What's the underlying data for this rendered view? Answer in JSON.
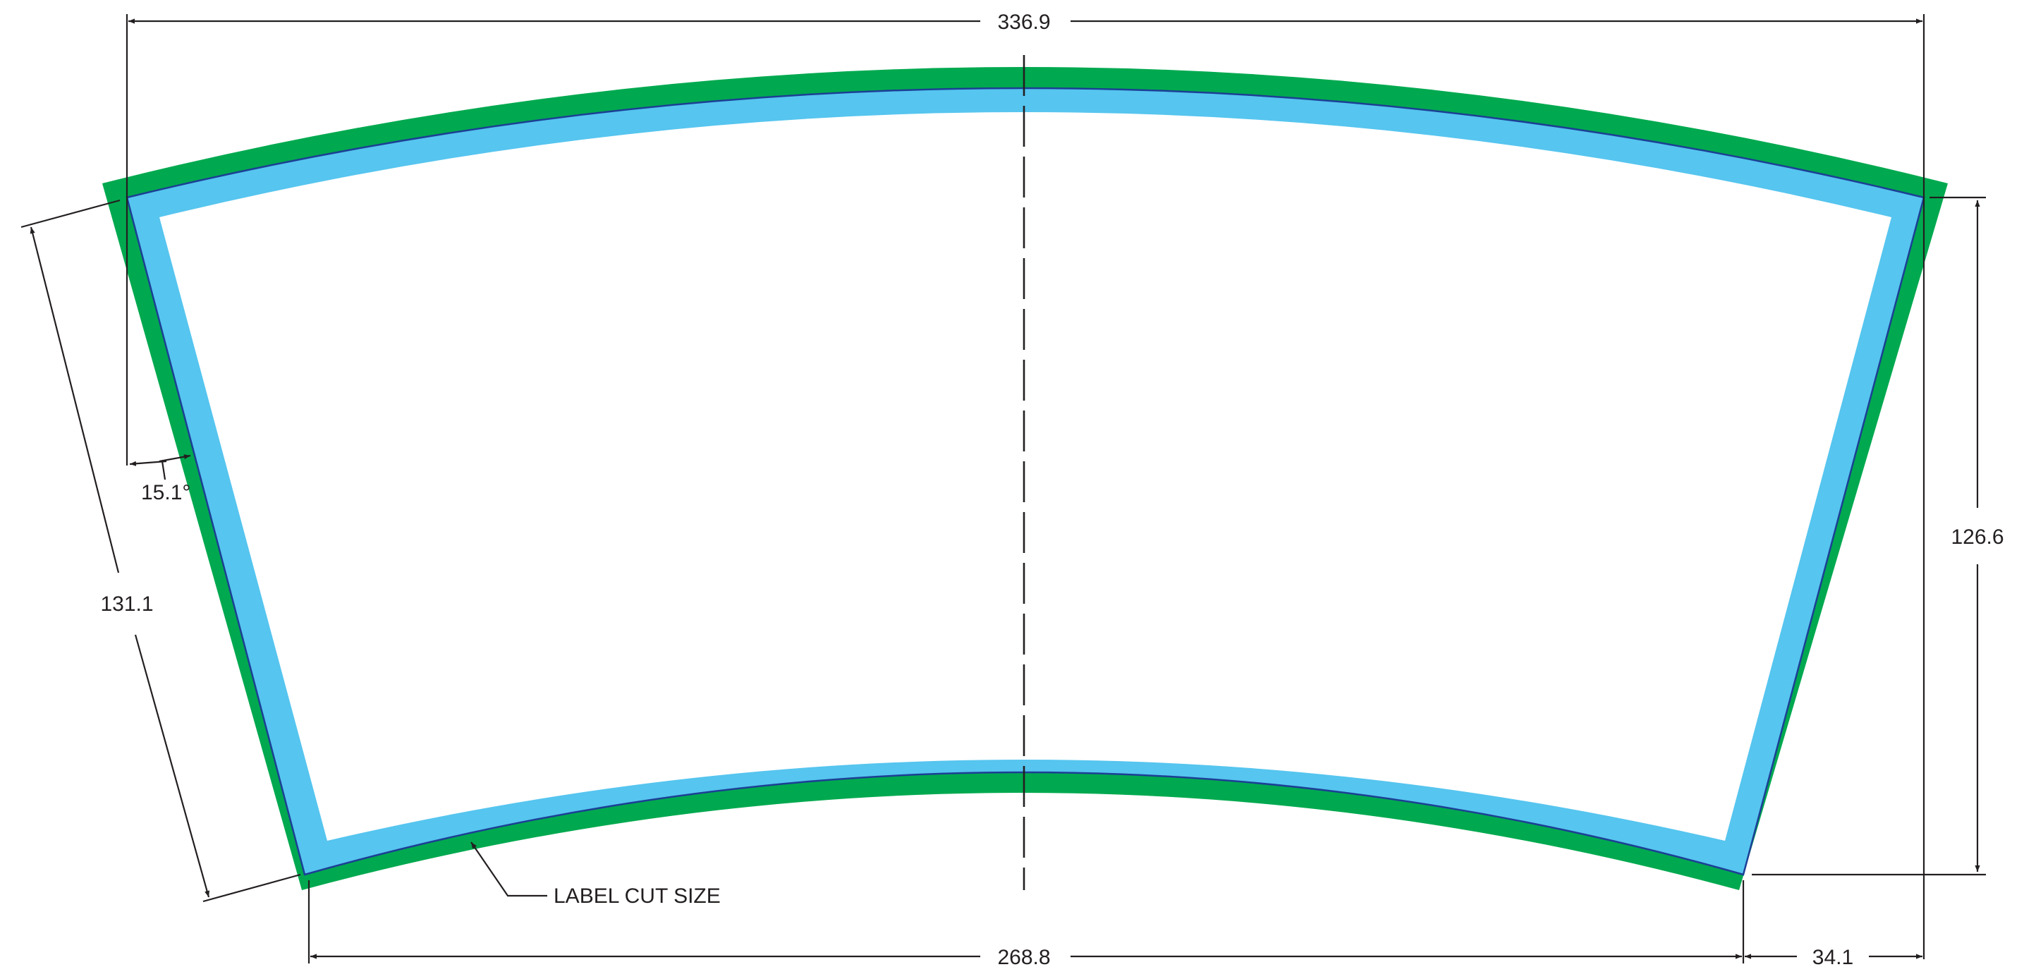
{
  "dimensions": {
    "top_width": "336.9",
    "bottom_width": "268.8",
    "side_length": "131.1",
    "height": "126.6",
    "offset": "34.1",
    "angle": "15.1°"
  },
  "callout": {
    "label": "LABEL CUT SIZE"
  },
  "colors": {
    "bleed_green": "#00a94f",
    "label_blue": "#56c5ef",
    "cut_line": "#1c3f95",
    "ink": "#231f20",
    "background": "#ffffff"
  }
}
